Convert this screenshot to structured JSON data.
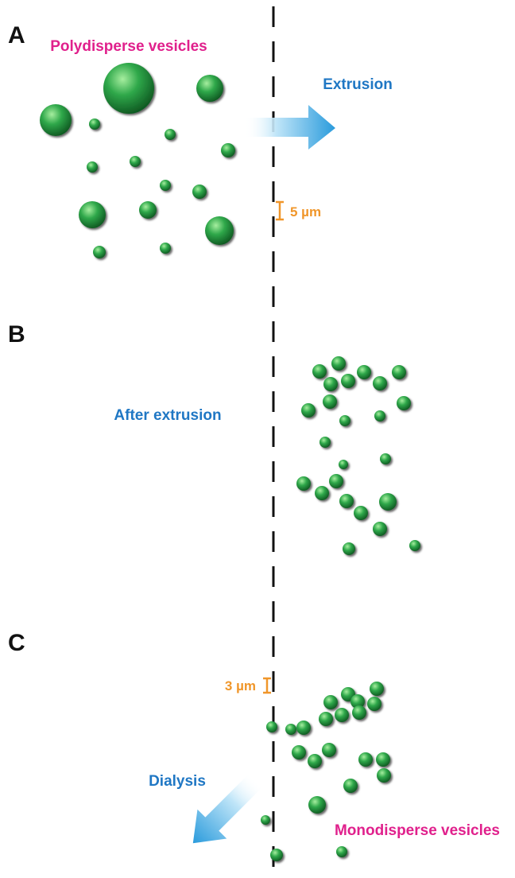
{
  "panels": [
    {
      "letter": "A",
      "label": "Polydisperse vesicles",
      "process": "Extrusion",
      "scale_bar": "5 µm"
    },
    {
      "letter": "B",
      "label": "After extrusion"
    },
    {
      "letter": "C",
      "label": "Monodisperse vesicles",
      "process": "Dialysis",
      "scale_bar": "3 µm"
    }
  ],
  "colors": {
    "vesicle": "#2fa84a",
    "vesicle_highlight": "#8fe08f",
    "vesicle_dark": "#0d4d1c",
    "label_magenta": "#e0208c",
    "label_blue": "#1f77c4",
    "scale_orange": "#f0962a",
    "arrow_light": "#d9f0fb",
    "arrow_dark": "#2a9bdc",
    "membrane_line": "#111111"
  }
}
